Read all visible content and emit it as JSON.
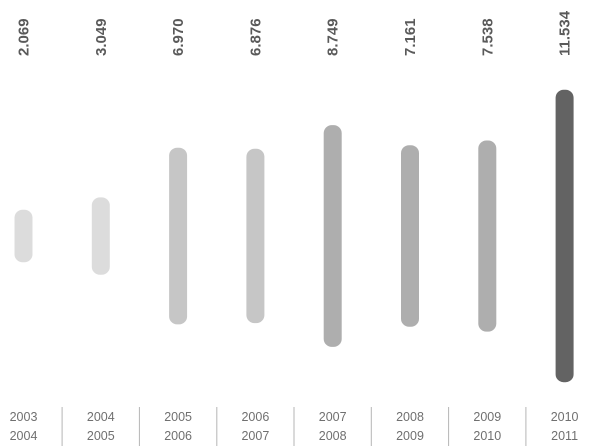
{
  "chart_data": {
    "type": "bar",
    "style": "floating-range",
    "categories": [
      [
        "2003",
        "2004"
      ],
      [
        "2004",
        "2005"
      ],
      [
        "2005",
        "2006"
      ],
      [
        "2006",
        "2007"
      ],
      [
        "2007",
        "2008"
      ],
      [
        "2008",
        "2009"
      ],
      [
        "2009",
        "2010"
      ],
      [
        "2010",
        "2011"
      ]
    ],
    "value_labels": [
      "2.069",
      "3.049",
      "6.970",
      "6.876",
      "8.749",
      "7.161",
      "7.538",
      "11.534"
    ],
    "values": [
      2069,
      3049,
      6970,
      6876,
      8749,
      7161,
      7538,
      11534
    ],
    "colors": [
      "#dcdcdc",
      "#dcdcdc",
      "#c6c6c6",
      "#c6c6c6",
      "#aeaeae",
      "#aeaeae",
      "#aeaeae",
      "#636363"
    ],
    "title": "",
    "xlabel": "",
    "ylabel": "",
    "legend": "none",
    "grid": false,
    "axes_visible": false
  }
}
